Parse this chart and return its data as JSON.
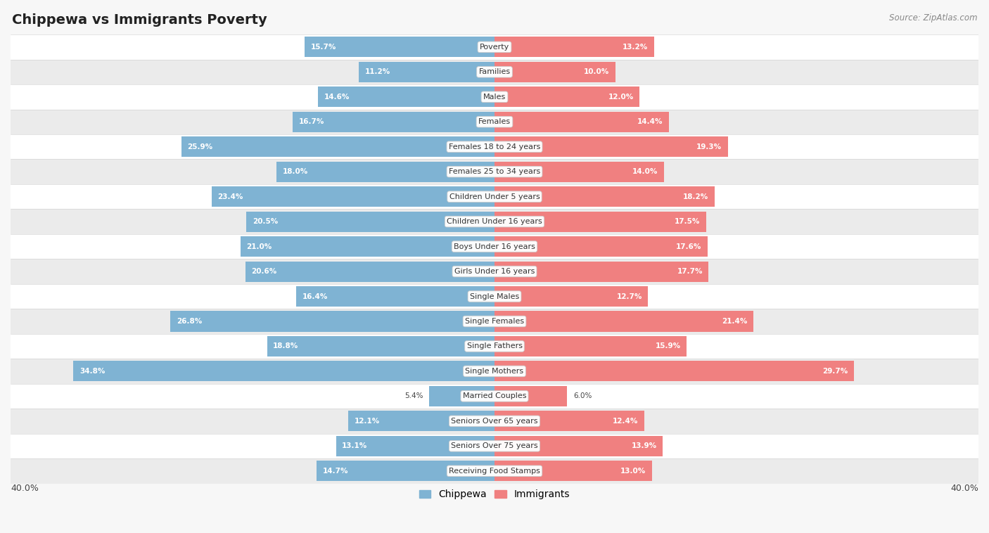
{
  "title": "Chippewa vs Immigrants Poverty",
  "source": "Source: ZipAtlas.com",
  "categories": [
    "Poverty",
    "Families",
    "Males",
    "Females",
    "Females 18 to 24 years",
    "Females 25 to 34 years",
    "Children Under 5 years",
    "Children Under 16 years",
    "Boys Under 16 years",
    "Girls Under 16 years",
    "Single Males",
    "Single Females",
    "Single Fathers",
    "Single Mothers",
    "Married Couples",
    "Seniors Over 65 years",
    "Seniors Over 75 years",
    "Receiving Food Stamps"
  ],
  "chippewa": [
    15.7,
    11.2,
    14.6,
    16.7,
    25.9,
    18.0,
    23.4,
    20.5,
    21.0,
    20.6,
    16.4,
    26.8,
    18.8,
    34.8,
    5.4,
    12.1,
    13.1,
    14.7
  ],
  "immigrants": [
    13.2,
    10.0,
    12.0,
    14.4,
    19.3,
    14.0,
    18.2,
    17.5,
    17.6,
    17.7,
    12.7,
    21.4,
    15.9,
    29.7,
    6.0,
    12.4,
    13.9,
    13.0
  ],
  "chippewa_color": "#7fb3d3",
  "immigrants_color": "#f08080",
  "xlim": 40.0,
  "bg_color": "#f7f7f7",
  "row_bg_even": "#ffffff",
  "row_bg_odd": "#ebebeb"
}
